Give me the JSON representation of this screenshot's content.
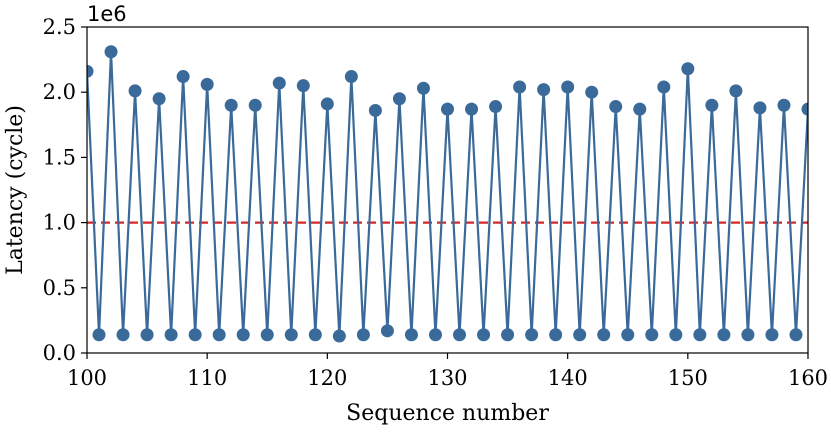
{
  "chart_data": {
    "type": "line",
    "xlabel": "Sequence number",
    "ylabel": "Latency (cycle)",
    "y_scale_label": "1e6",
    "xlim": [
      100,
      160
    ],
    "ylim": [
      0.0,
      2.5
    ],
    "x_ticks": [
      "100",
      "110",
      "120",
      "130",
      "140",
      "150",
      "160"
    ],
    "y_ticks": [
      "0.0",
      "0.5",
      "1.0",
      "1.5",
      "2.0",
      "2.5"
    ],
    "grid": false,
    "series": [
      {
        "color": "#3a6a99",
        "marker": "circle",
        "x": [
          100,
          101,
          102,
          103,
          104,
          105,
          106,
          107,
          108,
          109,
          110,
          111,
          112,
          113,
          114,
          115,
          116,
          117,
          118,
          119,
          120,
          121,
          122,
          123,
          124,
          125,
          126,
          127,
          128,
          129,
          130,
          131,
          132,
          133,
          134,
          135,
          136,
          137,
          138,
          139,
          140,
          141,
          142,
          143,
          144,
          145,
          146,
          147,
          148,
          149,
          150,
          151,
          152,
          153,
          154,
          155,
          156,
          157,
          158,
          159,
          160
        ],
        "y": [
          2.16,
          0.14,
          2.31,
          0.14,
          2.01,
          0.14,
          1.95,
          0.14,
          2.12,
          0.14,
          2.06,
          0.14,
          1.9,
          0.14,
          1.9,
          0.14,
          2.07,
          0.14,
          2.05,
          0.14,
          1.91,
          0.13,
          2.12,
          0.14,
          1.86,
          0.17,
          1.95,
          0.14,
          2.03,
          0.14,
          1.87,
          0.14,
          1.87,
          0.14,
          1.89,
          0.14,
          2.04,
          0.14,
          2.02,
          0.14,
          2.04,
          0.14,
          2.0,
          0.14,
          1.89,
          0.14,
          1.87,
          0.14,
          2.04,
          0.14,
          2.18,
          0.14,
          1.9,
          0.14,
          2.01,
          0.14,
          1.88,
          0.14,
          1.9,
          0.14,
          1.87
        ]
      }
    ],
    "reference_line": {
      "y": 1.0,
      "color": "#d62728",
      "style": "dashed"
    }
  }
}
